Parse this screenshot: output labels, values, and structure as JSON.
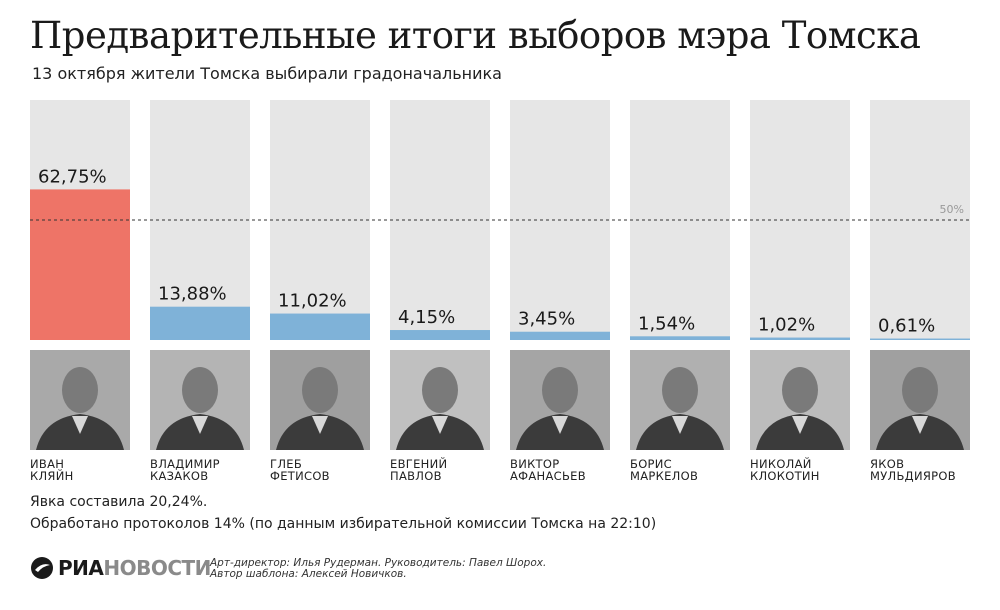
{
  "title": "Предварительные итоги выборов мэра Томска",
  "subtitle": "13 октября жители Томска выбирали градоначальника",
  "chart_data": {
    "type": "bar",
    "ylim": [
      0,
      100
    ],
    "threshold": {
      "value": 50,
      "label": "50%"
    },
    "colors": {
      "winner": "#ee7467",
      "other": "#7fb2d8",
      "track": "#e6e6e6"
    },
    "categories": [
      "Иван Кляйн",
      "Владимир Казаков",
      "Глеб Фетисов",
      "Евгений Павлов",
      "Виктор Афанасьев",
      "Борис Маркелов",
      "Николай Клокотин",
      "Яков Мульдияров"
    ],
    "values": [
      62.75,
      13.88,
      11.02,
      4.15,
      3.45,
      1.54,
      1.02,
      0.61
    ],
    "value_labels": [
      "62,75%",
      "13,88%",
      "11,02%",
      "4,15%",
      "3,45%",
      "1,54%",
      "1,02%",
      "0,61%"
    ]
  },
  "candidates": [
    {
      "first": "Иван",
      "last": "Кляйн"
    },
    {
      "first": "Владимир",
      "last": "Казаков"
    },
    {
      "first": "Глеб",
      "last": "Фетисов"
    },
    {
      "first": "Евгений",
      "last": "Павлов"
    },
    {
      "first": "Виктор",
      "last": "Афанасьев"
    },
    {
      "first": "Борис",
      "last": "Маркелов"
    },
    {
      "first": "Николай",
      "last": "Клокотин"
    },
    {
      "first": "Яков",
      "last": "Мульдияров"
    }
  ],
  "footer": {
    "turnout": "Явка составила 20,24%.",
    "protocols": "Обработано протоколов 14% (по данным избирательной комиссии Томска на 22:10)"
  },
  "logo": {
    "part1": "РИА",
    "part2": "НОВОСТИ"
  },
  "credits": {
    "line1": "Арт-директор: Илья Рудерман. Руководитель: Павел Шорох.",
    "line2": "Автор шаблона: Алексей Новичков."
  }
}
